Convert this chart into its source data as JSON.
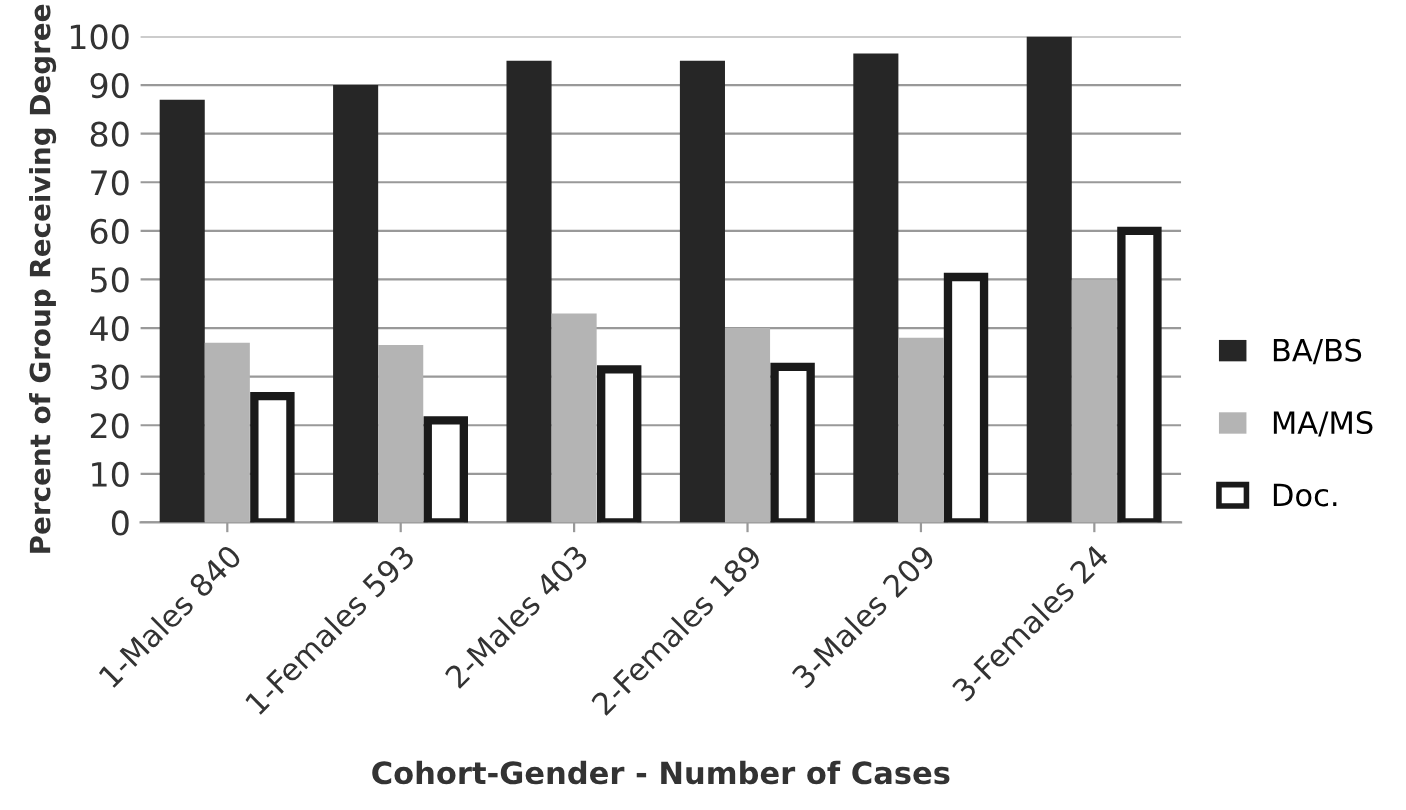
{
  "chart_data": {
    "type": "bar",
    "xlabel": "Cohort-Gender - Number of Cases",
    "ylabel": "Percent of Group Receiving Degree",
    "categories": [
      "1-Males 840",
      "1-Females 593",
      "2-Males 403",
      "2-Females 189",
      "3-Males 209",
      "3-Females 24"
    ],
    "series": [
      {
        "name": "BA/BS",
        "color": "#262626",
        "values": [
          87,
          90,
          95,
          95,
          96.5,
          100
        ]
      },
      {
        "name": "MA/MS",
        "color": "#b4b4b4",
        "values": [
          37,
          36.5,
          43,
          40,
          38,
          50
        ]
      },
      {
        "name": "Doc.",
        "color": "#ffffff",
        "values": [
          26,
          21,
          31.5,
          32,
          50.5,
          60
        ]
      }
    ],
    "ylim": [
      0,
      100
    ],
    "yticks": [
      0,
      10,
      20,
      30,
      40,
      50,
      60,
      70,
      80,
      90,
      100
    ],
    "grid": "y",
    "legend": "right"
  }
}
